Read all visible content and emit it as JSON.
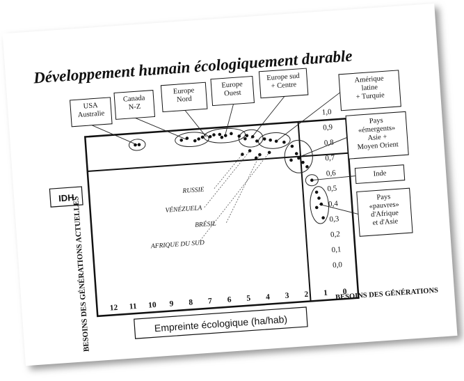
{
  "chart_data": {
    "type": "scatter",
    "title": "Développement humain écologiquement durable",
    "xlabel": "Empreinte écologique (ha/hab)",
    "ylabel": "BESOINS DES GÉNÉRATIONS ACTUELLES",
    "xlabel2": "BESOINS DES GÉNÉRATIONS",
    "idh_label": "IDH",
    "x_ticks": [
      "12",
      "11",
      "10",
      "9",
      "8",
      "7",
      "6",
      "5",
      "4",
      "3",
      "2",
      "1",
      "0"
    ],
    "y_ticks": [
      "1,0",
      "0,9",
      "0,8",
      "0,7",
      "0,6",
      "0,5",
      "0,4",
      "0,3",
      "0,2",
      "0,1",
      "0,0"
    ],
    "xlim": [
      12.5,
      -0.3
    ],
    "ylim": [
      -0.05,
      1.05
    ],
    "x_reversed": true,
    "threshold_x": 1.8,
    "threshold_y": 0.72,
    "grid": false,
    "points": [
      {
        "x": 10.1,
        "y": 0.87
      },
      {
        "x": 10.3,
        "y": 0.87
      },
      {
        "x": 7.9,
        "y": 0.88
      },
      {
        "x": 7.6,
        "y": 0.89
      },
      {
        "x": 7.2,
        "y": 0.87
      },
      {
        "x": 6.8,
        "y": 0.89
      },
      {
        "x": 7.0,
        "y": 0.88
      },
      {
        "x": 6.4,
        "y": 0.89
      },
      {
        "x": 6.2,
        "y": 0.9
      },
      {
        "x": 5.9,
        "y": 0.9
      },
      {
        "x": 5.6,
        "y": 0.89
      },
      {
        "x": 5.3,
        "y": 0.9
      },
      {
        "x": 5.8,
        "y": 0.88
      },
      {
        "x": 4.9,
        "y": 0.88
      },
      {
        "x": 4.5,
        "y": 0.88
      },
      {
        "x": 4.2,
        "y": 0.87
      },
      {
        "x": 4.0,
        "y": 0.84
      },
      {
        "x": 4.6,
        "y": 0.86
      },
      {
        "x": 3.3,
        "y": 0.84
      },
      {
        "x": 3.0,
        "y": 0.83
      },
      {
        "x": 2.6,
        "y": 0.82
      },
      {
        "x": 3.6,
        "y": 0.85
      },
      {
        "x": 4.8,
        "y": 0.76
      },
      {
        "x": 4.4,
        "y": 0.78
      },
      {
        "x": 3.9,
        "y": 0.75
      },
      {
        "x": 3.4,
        "y": 0.76
      },
      {
        "x": 4.1,
        "y": 0.73
      },
      {
        "x": 2.2,
        "y": 0.79
      },
      {
        "x": 2.0,
        "y": 0.74
      },
      {
        "x": 1.9,
        "y": 0.71
      },
      {
        "x": 2.3,
        "y": 0.7
      },
      {
        "x": 1.7,
        "y": 0.68
      },
      {
        "x": 1.5,
        "y": 0.65
      },
      {
        "x": 1.3,
        "y": 0.56
      },
      {
        "x": 1.1,
        "y": 0.48
      },
      {
        "x": 1.0,
        "y": 0.44
      },
      {
        "x": 0.9,
        "y": 0.4
      },
      {
        "x": 1.15,
        "y": 0.38
      },
      {
        "x": 0.85,
        "y": 0.31
      }
    ],
    "annotations": [
      {
        "text": "USA Australie",
        "target_x": 10.2,
        "target_y": 0.87
      },
      {
        "text": "Canada N-Z",
        "target_x": 7.6,
        "target_y": 0.88
      },
      {
        "text": "Europe Nord",
        "target_x": 6.6,
        "target_y": 0.89
      },
      {
        "text": "Europe Ouest",
        "target_x": 5.6,
        "target_y": 0.9
      },
      {
        "text": "Europe sud + Centre",
        "target_x": 4.3,
        "target_y": 0.86
      },
      {
        "text": "Amérique latine + Turquie",
        "target_x": 3.0,
        "target_y": 0.83
      },
      {
        "text": "Pays «émergents» Asie + Moyen Orient",
        "target_x": 1.8,
        "target_y": 0.72
      },
      {
        "text": "Inde",
        "target_x": 1.3,
        "target_y": 0.56
      },
      {
        "text": "Pays «pauvres» d'Afrique et d'Asie",
        "target_x": 1.0,
        "target_y": 0.4
      }
    ],
    "country_labels": [
      {
        "text": "RUSSIE",
        "target_x": 4.8,
        "target_y": 0.76
      },
      {
        "text": "VÉNÉZUELA",
        "target_x": 4.4,
        "target_y": 0.78
      },
      {
        "text": "BRÉSIL",
        "target_x": 3.9,
        "target_y": 0.75
      },
      {
        "text": "AFRIQUE DU SUD",
        "target_x": 3.4,
        "target_y": 0.76
      }
    ]
  }
}
